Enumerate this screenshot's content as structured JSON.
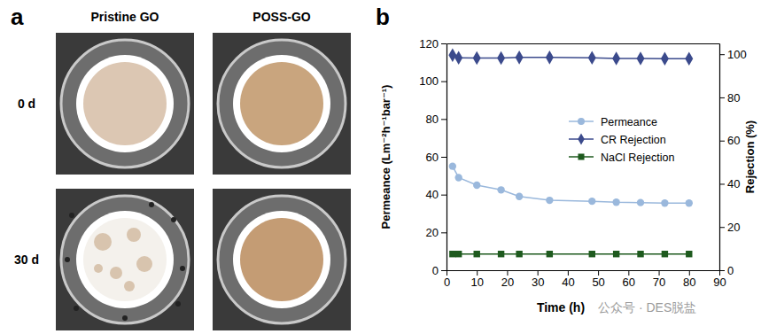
{
  "chart_data": {
    "type": "line",
    "x_label": "Time (h)",
    "y_label": "Permeance (Lm⁻²h⁻¹bar⁻¹)",
    "y2_label": "Rejection (%)",
    "x": [
      2,
      4,
      10,
      18,
      24,
      34,
      48,
      56,
      64,
      72,
      80
    ],
    "series": [
      {
        "name": "Permeance",
        "color": "#9ab8dc",
        "marker": "circle",
        "line_style": "solid",
        "values": [
          55,
          49,
          45,
          42.5,
          39,
          37,
          36.5,
          36,
          35.8,
          35.5,
          35.5
        ]
      },
      {
        "name": "CR Rejection",
        "color": "#3b4a8c",
        "marker": "diamond",
        "line_style": "solid",
        "axis": "y2",
        "values": [
          99.6,
          98.3,
          98.2,
          98.2,
          98.5,
          98.5,
          98.3,
          98,
          98,
          97.9,
          97.9
        ]
      },
      {
        "name": "NaCl Rejection",
        "color": "#1e5a1e",
        "marker": "square",
        "line_style": "solid",
        "axis": "y2",
        "values": [
          7.5,
          7.5,
          7.5,
          7.5,
          7.5,
          7.5,
          7.5,
          7.5,
          7.5,
          7.5,
          7.5
        ]
      }
    ],
    "xlim": [
      0,
      90
    ],
    "xticks": [
      0,
      10,
      20,
      30,
      40,
      50,
      60,
      70,
      80,
      90
    ],
    "ylim": [
      0,
      120
    ],
    "yticks": [
      0,
      20,
      40,
      60,
      80,
      100,
      120
    ],
    "y2lim": [
      0,
      105
    ],
    "y2ticks": [
      0,
      20,
      40,
      60,
      80,
      100
    ],
    "grid": false,
    "legend": "right"
  },
  "figure": {
    "panel_labels": [
      "a",
      "b"
    ],
    "photo_panel": {
      "columns": [
        "Pristine GO",
        "POSS-GO"
      ],
      "rows": [
        "0 d",
        "30 d"
      ]
    },
    "watermark": "公众号 · DES脱盐"
  }
}
